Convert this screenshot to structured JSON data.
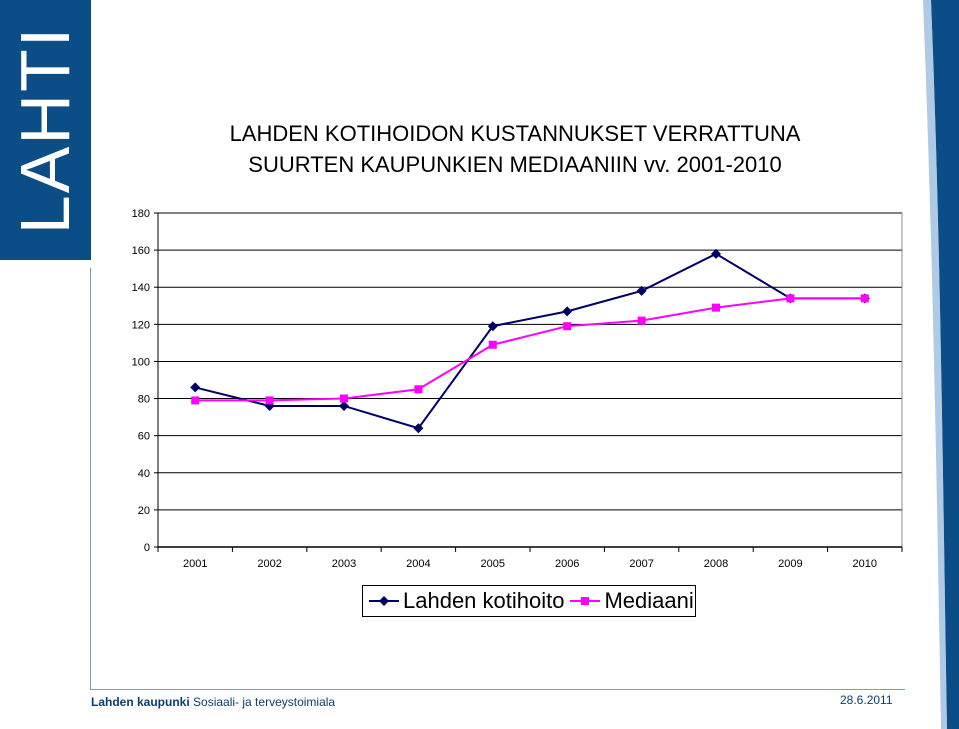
{
  "brand": {
    "logo_text": "LAHTI",
    "color": "#0b4d86"
  },
  "footer": {
    "org_bold": "Lahden kaupunki",
    "org_rest": "Sosiaali- ja terveystoimiala",
    "date": "28.6.2011"
  },
  "chart_data": {
    "type": "line",
    "title_line1": "LAHDEN KOTIHOIDON KUSTANNUKSET VERRATTUNA",
    "title_line2": "SUURTEN KAUPUNKIEN MEDIAANIIN vv. 2001-2010",
    "categories": [
      "2001",
      "2002",
      "2003",
      "2004",
      "2005",
      "2006",
      "2007",
      "2008",
      "2009",
      "2010"
    ],
    "series": [
      {
        "name": "Lahden kotihoito",
        "color": "#000066",
        "marker": "diamond",
        "values": [
          86,
          76,
          76,
          64,
          119,
          127,
          138,
          158,
          134,
          134
        ]
      },
      {
        "name": "Mediaani",
        "color": "#ff00ff",
        "marker": "square",
        "values": [
          79,
          79,
          80,
          85,
          109,
          119,
          122,
          129,
          134,
          134
        ]
      }
    ],
    "ylim": [
      0,
      180
    ],
    "yticks": [
      "0",
      "20",
      "40",
      "60",
      "80",
      "100",
      "120",
      "140",
      "160",
      "180"
    ],
    "grid": true,
    "legend": "bottom"
  }
}
